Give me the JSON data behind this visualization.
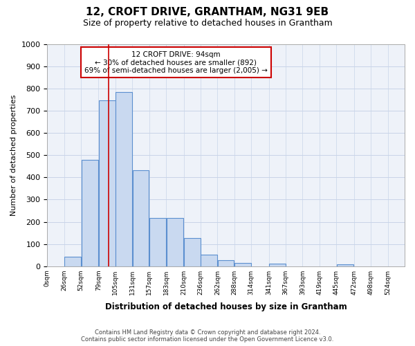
{
  "title": "12, CROFT DRIVE, GRANTHAM, NG31 9EB",
  "subtitle": "Size of property relative to detached houses in Grantham",
  "xlabel": "Distribution of detached houses by size in Grantham",
  "ylabel": "Number of detached properties",
  "bar_labels": [
    "0sqm",
    "26sqm",
    "52sqm",
    "79sqm",
    "105sqm",
    "131sqm",
    "157sqm",
    "183sqm",
    "210sqm",
    "236sqm",
    "262sqm",
    "288sqm",
    "314sqm",
    "341sqm",
    "367sqm",
    "393sqm",
    "419sqm",
    "445sqm",
    "472sqm",
    "498sqm",
    "524sqm"
  ],
  "bar_heights": [
    0,
    43,
    480,
    748,
    785,
    432,
    218,
    218,
    128,
    53,
    28,
    15,
    0,
    10,
    0,
    0,
    0,
    8,
    0,
    0,
    0
  ],
  "bar_color": "#c9d9f0",
  "bar_edge_color": "#5b8fcf",
  "ylim": [
    0,
    1000
  ],
  "yticks": [
    0,
    100,
    200,
    300,
    400,
    500,
    600,
    700,
    800,
    900,
    1000
  ],
  "property_line_x": 94,
  "annotation_title": "12 CROFT DRIVE: 94sqm",
  "annotation_line1": "← 30% of detached houses are smaller (892)",
  "annotation_line2": "69% of semi-detached houses are larger (2,005) →",
  "annotation_box_color": "#cc0000",
  "footer_line1": "Contains HM Land Registry data © Crown copyright and database right 2024.",
  "footer_line2": "Contains public sector information licensed under the Open Government Licence v3.0.",
  "bg_color": "#eef2f9",
  "grid_color": "#c8d4e8",
  "bin_edges": [
    0,
    26,
    52,
    79,
    105,
    131,
    157,
    183,
    210,
    236,
    262,
    288,
    314,
    341,
    367,
    393,
    419,
    445,
    472,
    498,
    524,
    550
  ]
}
